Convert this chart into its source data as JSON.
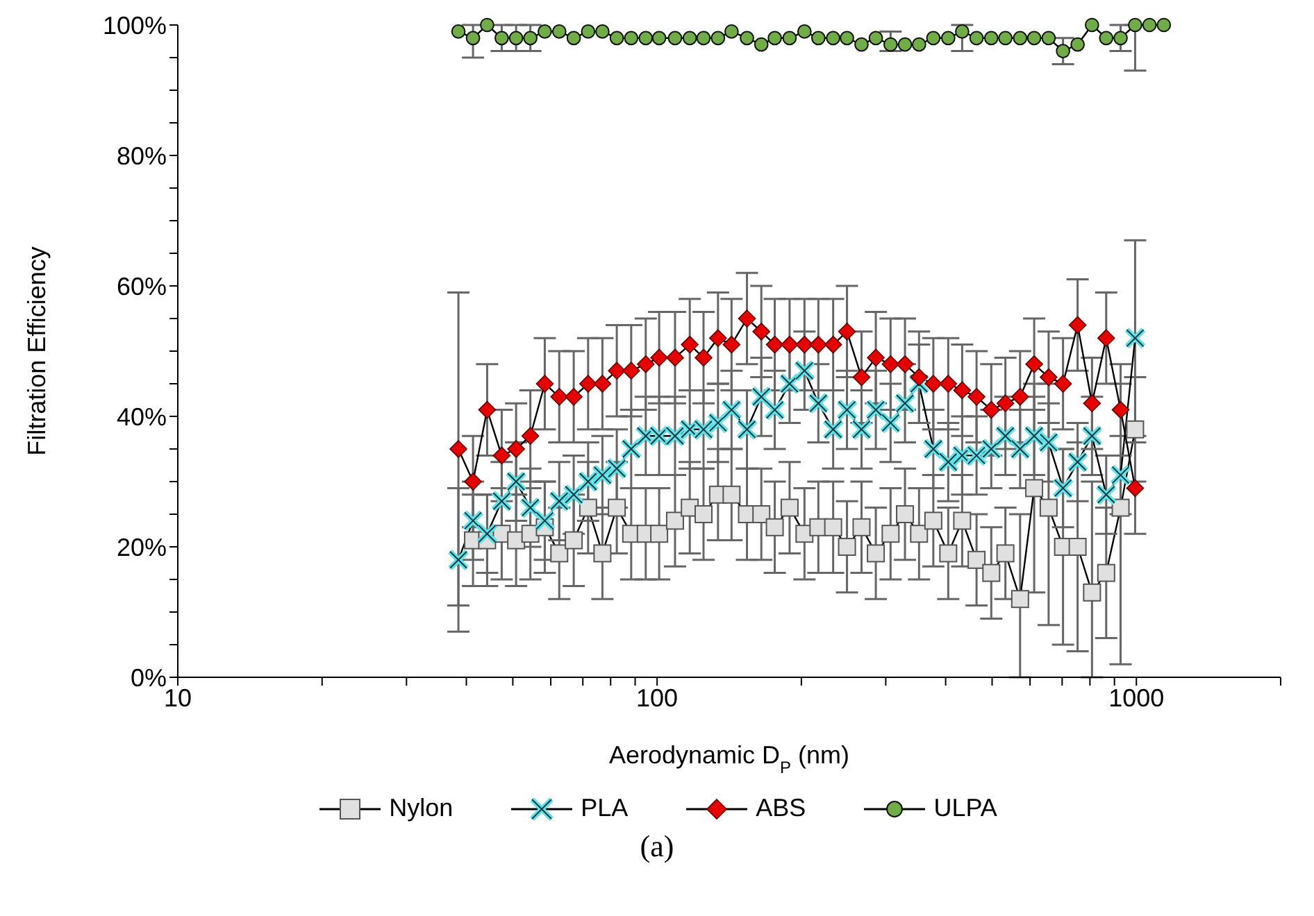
{
  "chart_data": {
    "type": "line",
    "xlabel": "Aerodynamic D$_{P}$ (nm)",
    "ylabel": "Filtration Efficiency",
    "annotations": [
      "(a)"
    ],
    "log": "x",
    "xlim": [
      10,
      2000
    ],
    "xticks": [
      10,
      {
        "value": 20,
        "label": null
      },
      {
        "value": 30,
        "label": null
      },
      {
        "value": 40,
        "label": null
      },
      {
        "value": 50,
        "label": null
      },
      {
        "value": 60,
        "label": null
      },
      {
        "value": 70,
        "label": null
      },
      {
        "value": 80,
        "label": null
      },
      {
        "value": 90,
        "label": null
      },
      100,
      {
        "value": 200,
        "label": null
      },
      {
        "value": 300,
        "label": null
      },
      {
        "value": 400,
        "label": null
      },
      {
        "value": 500,
        "label": null
      },
      {
        "value": 600,
        "label": null
      },
      {
        "value": 700,
        "label": null
      },
      {
        "value": 800,
        "label": null
      },
      {
        "value": 900,
        "label": null
      },
      1000,
      {
        "value": 2000,
        "label": null
      }
    ],
    "ylim": [
      0,
      100
    ],
    "yticks": [
      {
        "value": 0,
        "label": "0%"
      },
      {
        "value": 5,
        "label": null
      },
      {
        "value": 10,
        "label": null
      },
      {
        "value": 15,
        "label": null
      },
      {
        "value": 20,
        "label": "20%"
      },
      {
        "value": 25,
        "label": null
      },
      {
        "value": 30,
        "label": null
      },
      {
        "value": 35,
        "label": null
      },
      {
        "value": 40,
        "label": "40%"
      },
      {
        "value": 45,
        "label": null
      },
      {
        "value": 50,
        "label": null
      },
      {
        "value": 55,
        "label": null
      },
      {
        "value": 60,
        "label": "60%"
      },
      {
        "value": 65,
        "label": null
      },
      {
        "value": 70,
        "label": null
      },
      {
        "value": 75,
        "label": null
      },
      {
        "value": 80,
        "label": "80%"
      },
      {
        "value": 85,
        "label": null
      },
      {
        "value": 90,
        "label": null
      },
      {
        "value": 95,
        "label": null
      },
      {
        "value": 100,
        "label": "100%"
      }
    ],
    "legend": "bottom",
    "x": [
      38.5,
      41.3,
      44.2,
      47.4,
      50.8,
      54.4,
      58.3,
      62.5,
      67,
      71.8,
      76.9,
      82.4,
      88.3,
      94.7,
      101,
      109,
      117,
      125,
      134,
      143,
      154,
      165,
      176,
      189,
      203,
      217,
      233,
      249,
      267,
      286,
      307,
      329,
      352,
      377,
      405,
      433,
      464,
      498,
      533,
      572,
      612,
      656,
      703,
      754,
      808,
      865,
      927,
      994,
      1065,
      1141
    ],
    "series": [
      {
        "name": "Nylon",
        "color": "#e0e0e0",
        "marker": "square",
        "values": [
          null,
          21,
          21,
          22,
          21,
          22,
          23,
          19,
          21,
          26,
          19,
          26,
          22,
          22,
          22,
          24,
          26,
          25,
          28,
          28,
          25,
          25,
          23,
          26,
          22,
          23,
          23,
          20,
          23,
          19,
          22,
          25,
          22,
          24,
          19,
          24,
          18,
          16,
          19,
          12,
          29,
          26,
          20,
          20,
          13,
          16,
          26,
          38,
          null,
          null
        ],
        "errors": [
          null,
          7,
          7,
          7,
          7,
          7,
          7,
          7,
          7,
          7,
          7,
          7,
          7,
          7,
          7,
          7,
          7,
          7,
          7,
          7,
          7,
          7,
          7,
          7,
          7,
          7,
          7,
          7,
          7,
          7,
          7,
          7,
          7,
          7,
          7,
          7,
          7,
          7,
          7,
          [
            0,
            25
          ],
          [
            13,
            45
          ],
          [
            8,
            45
          ],
          [
            5,
            35
          ],
          [
            4,
            36
          ],
          [
            0,
            30
          ],
          [
            6,
            26
          ],
          [
            2,
            45
          ],
          8,
          null,
          null
        ]
      },
      {
        "name": "PLA",
        "color": "#5fe3ea",
        "marker": "cross",
        "values": [
          18,
          24,
          22,
          27,
          30,
          26,
          24,
          27,
          28,
          30,
          31,
          32,
          35,
          37,
          37,
          37,
          38,
          38,
          39,
          41,
          38,
          43,
          41,
          45,
          47,
          42,
          38,
          41,
          38,
          41,
          39,
          42,
          45,
          35,
          33,
          34,
          34,
          35,
          37,
          35,
          37,
          36,
          29,
          33,
          37,
          28,
          31,
          52,
          null,
          null
        ],
        "errors": [
          11,
          6,
          6,
          6,
          6,
          6,
          6,
          6,
          6,
          6,
          6,
          6,
          6,
          6,
          6,
          6,
          6,
          6,
          6,
          6,
          6,
          6,
          6,
          6,
          6,
          6,
          6,
          6,
          6,
          6,
          6,
          6,
          6,
          6,
          6,
          6,
          6,
          6,
          6,
          6,
          6,
          6,
          6,
          6,
          6,
          6,
          6,
          15,
          null,
          null
        ]
      },
      {
        "name": "ABS",
        "color": "#e60000",
        "marker": "diamond",
        "values": [
          35,
          30,
          41,
          34,
          35,
          37,
          45,
          43,
          43,
          45,
          45,
          47,
          47,
          48,
          49,
          49,
          51,
          49,
          52,
          51,
          55,
          53,
          51,
          51,
          51,
          51,
          51,
          53,
          46,
          49,
          48,
          48,
          46,
          45,
          45,
          44,
          43,
          41,
          42,
          43,
          48,
          46,
          45,
          54,
          42,
          52,
          41,
          29,
          null,
          null
        ],
        "errors": [
          24,
          7,
          7,
          7,
          7,
          7,
          7,
          7,
          7,
          7,
          7,
          7,
          7,
          7,
          7,
          7,
          7,
          7,
          7,
          7,
          7,
          7,
          7,
          7,
          7,
          7,
          7,
          7,
          7,
          7,
          7,
          7,
          7,
          7,
          7,
          7,
          7,
          7,
          7,
          7,
          7,
          7,
          7,
          7,
          7,
          7,
          7,
          7,
          null,
          null
        ]
      },
      {
        "name": "ULPA",
        "color": "#70ad47",
        "marker": "circle",
        "values": [
          99,
          98,
          100,
          98,
          98,
          98,
          99,
          99,
          98,
          99,
          99,
          98,
          98,
          98,
          98,
          98,
          98,
          98,
          98,
          99,
          98,
          97,
          98,
          98,
          99,
          98,
          98,
          98,
          97,
          98,
          97,
          97,
          97,
          98,
          98,
          99,
          98,
          98,
          98,
          98,
          98,
          98,
          96,
          97,
          100,
          98,
          98,
          100,
          100,
          100
        ],
        "errors": [
          null,
          [
            95,
            100
          ],
          null,
          [
            96,
            100
          ],
          [
            96,
            100
          ],
          [
            96,
            100
          ],
          null,
          null,
          null,
          null,
          null,
          null,
          null,
          null,
          null,
          null,
          null,
          null,
          null,
          null,
          null,
          null,
          null,
          null,
          null,
          null,
          null,
          null,
          null,
          null,
          [
            96,
            99
          ],
          null,
          null,
          null,
          null,
          [
            96,
            100
          ],
          null,
          null,
          null,
          null,
          null,
          null,
          [
            94,
            98
          ],
          null,
          null,
          null,
          [
            96,
            100
          ],
          [
            93,
            100
          ],
          null,
          null
        ]
      }
    ]
  }
}
